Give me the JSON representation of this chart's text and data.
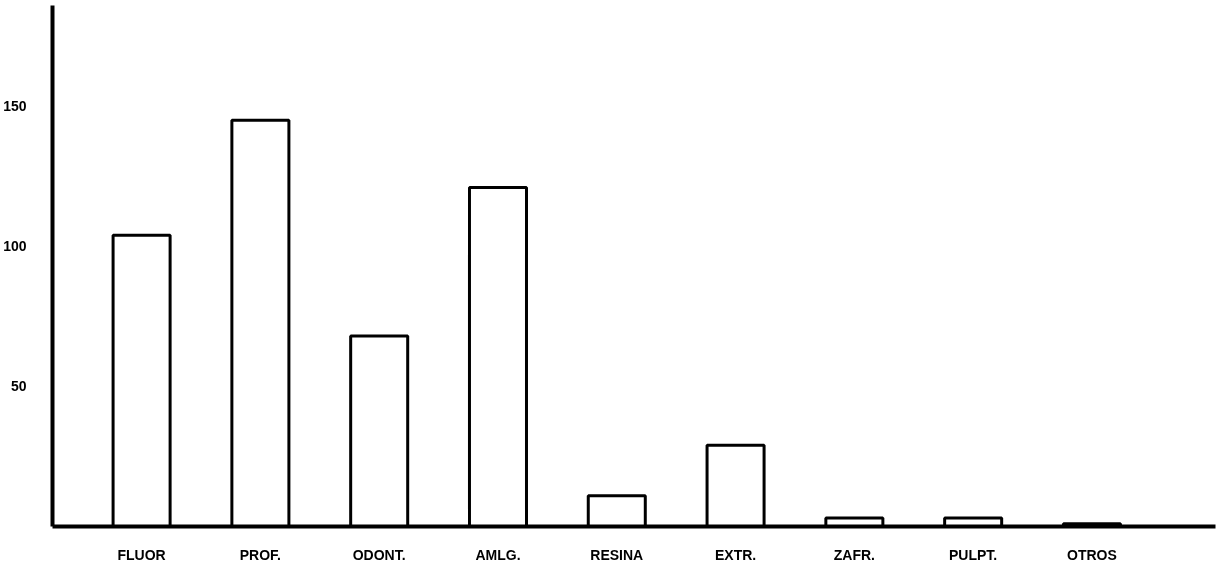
{
  "chart_data": {
    "type": "bar",
    "categories": [
      "FLUOR",
      "PROF.",
      "ODONT.",
      "AMLG.",
      "RESINA",
      "EXTR.",
      "ZAFR.",
      "PULPT.",
      "OTROS"
    ],
    "values": [
      104,
      145,
      68,
      121,
      11,
      29,
      3,
      3,
      1
    ],
    "color": "#ffffff",
    "ylim": [
      0,
      186
    ],
    "yticks": [
      50,
      100,
      150
    ],
    "grid": false
  }
}
